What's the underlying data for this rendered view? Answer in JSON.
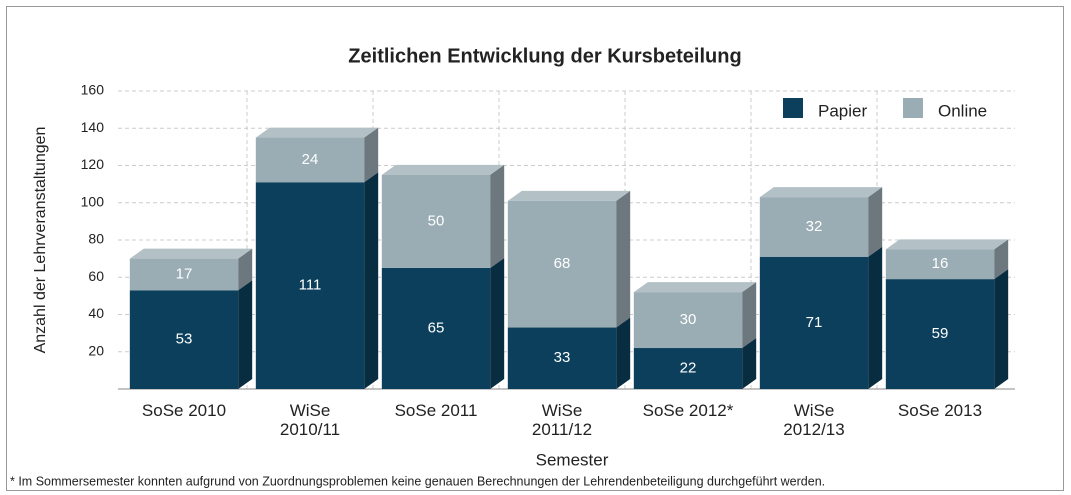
{
  "chart_data": {
    "type": "bar3d_stacked",
    "title": "Zeitlichen Entwicklung der Kursbeteilung",
    "x_label": "Semester",
    "y_label": "Anzahl der Lehrveranstaltungen",
    "footnote": "* Im Sommersemester konnten aufgrund von Zuordnungsproblemen keine genauen Berechnungen der Lehrendenbeteiligung durchgeführt werden.",
    "categories": [
      "SoSe 2010",
      "WiSe\n2010/11",
      "SoSe 2011",
      "WiSe\n2011/12",
      "SoSe 2012*",
      "WiSe\n2012/13",
      "SoSe 2013"
    ],
    "series": [
      {
        "name": "Papier",
        "color": "#0b3f5c",
        "values": [
          53,
          111,
          65,
          33,
          22,
          71,
          59
        ]
      },
      {
        "name": "Online",
        "color": "#9aacb4",
        "values": [
          17,
          24,
          50,
          68,
          30,
          32,
          16
        ]
      }
    ],
    "ylim": [
      0,
      160
    ],
    "yticks": [
      20,
      40,
      60,
      80,
      100,
      120,
      140,
      160
    ],
    "grid": true,
    "legend": "upper right"
  }
}
